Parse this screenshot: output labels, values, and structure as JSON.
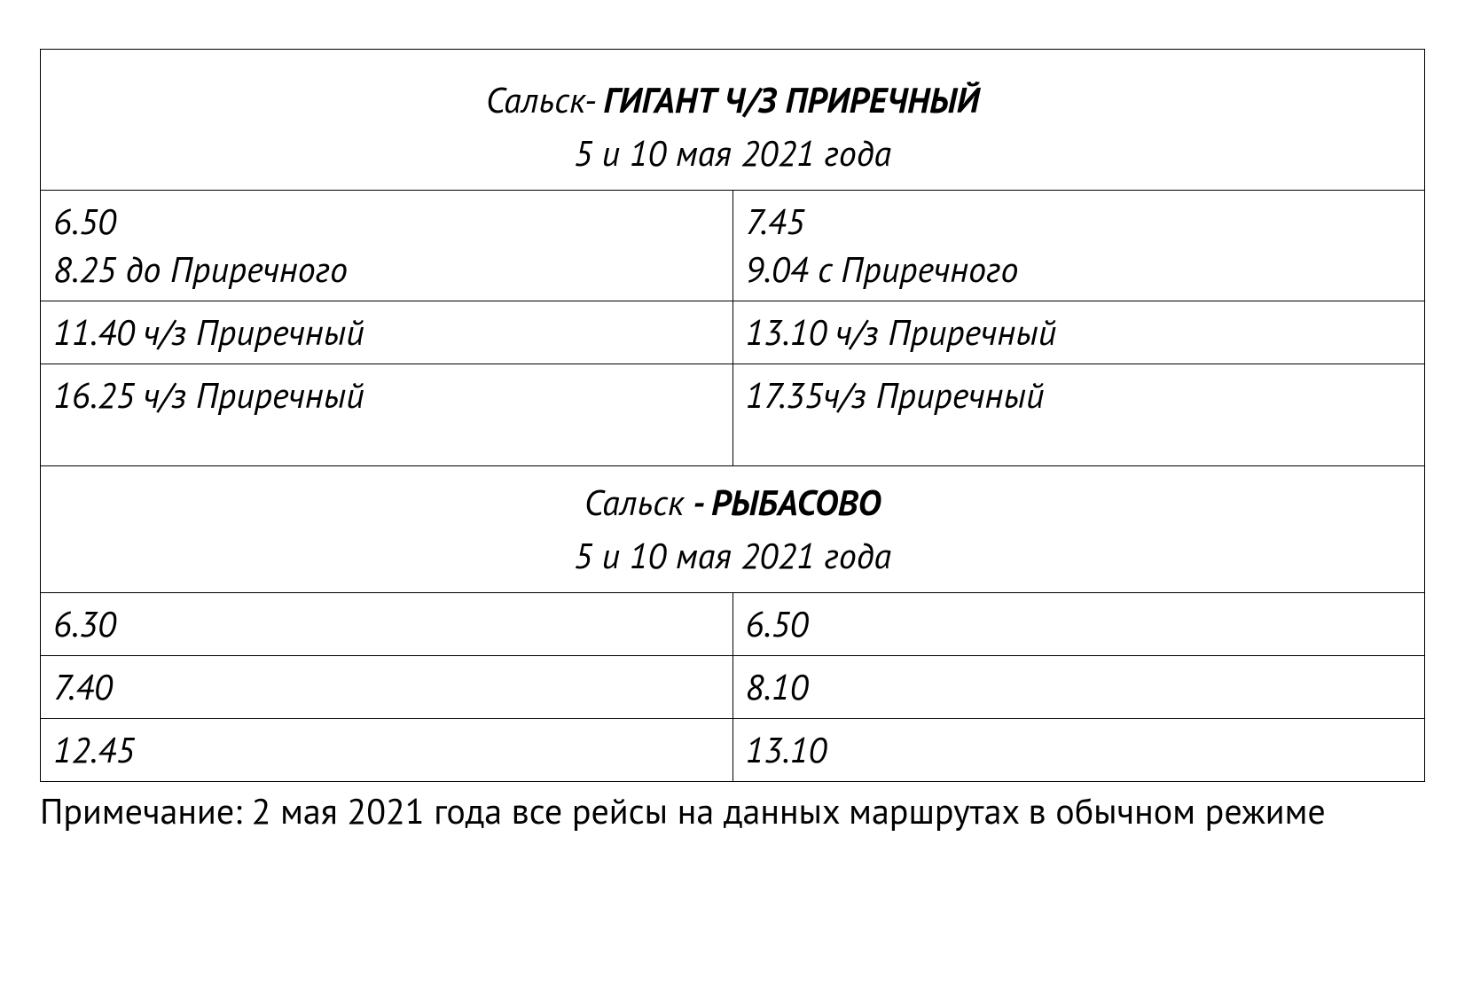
{
  "table": {
    "border_color": "#000000",
    "background_color": "#ffffff",
    "text_color": "#000000",
    "font_size_pt": 30,
    "columns": 2,
    "sections": [
      {
        "header": {
          "prefix": "Сальск- ",
          "route": "ГИГАНТ Ч/З ПРИРЕЧНЫЙ",
          "date": "5 и 10 мая 2021 года"
        },
        "rows": [
          {
            "left": "6.50\n8.25 до Приречного",
            "right": "7.45\n9.04 с Приречного"
          },
          {
            "left": "11.40 ч/з Приречный",
            "right": "13.10 ч/з Приречный"
          },
          {
            "left": "16.25 ч/з Приречный",
            "right": "17.35ч/з Приречный"
          }
        ]
      },
      {
        "header": {
          "prefix": "Сальск ",
          "route": "- РЫБАСОВО",
          "date": "5 и 10 мая 2021 года"
        },
        "rows": [
          {
            "left": "6.30",
            "right": "6.50"
          },
          {
            "left": "7.40",
            "right": "8.10"
          },
          {
            "left": "12.45",
            "right": "13.10"
          }
        ]
      }
    ]
  },
  "note": "Примечание: 2 мая 2021 года все рейсы на данных маршрутах в обычном режиме"
}
